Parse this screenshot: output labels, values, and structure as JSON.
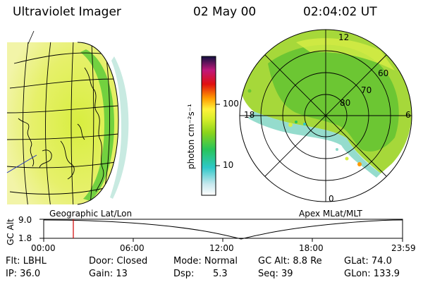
{
  "header": {
    "instrument": "Ultraviolet Imager",
    "date": "02 May 00",
    "time": "02:04:02 UT"
  },
  "colorbar": {
    "unit_label": "photon cm⁻²s⁻¹",
    "ticks": [
      "100",
      "10"
    ]
  },
  "polar": {
    "mlt_labels": [
      "12",
      "18",
      "6",
      "0"
    ],
    "lat_labels": [
      "60",
      "70",
      "80"
    ]
  },
  "panel_labels": {
    "left": "Geographic Lat/Lon",
    "right": "Apex MLat/MLT"
  },
  "altitude_plot": {
    "ylabel": "GC Alt",
    "yticks": [
      "9.0",
      "1.8"
    ],
    "xticks": [
      "00:00",
      "06:00",
      "12:00",
      "18:00",
      "23:59"
    ]
  },
  "info": {
    "filter": "Flt: LBHL",
    "door": "Door: Closed",
    "mode": "Mode: Normal",
    "gc_alt": "GC Alt: 8.8 Re",
    "glat": "GLat: 74.0",
    "ip": "IP: 36.0",
    "gain": "Gain: 13",
    "dsp_label": "Dsp:",
    "dsp_value": "5.3",
    "seq": "Seq: 39",
    "glon": "GLon: 133.9"
  }
}
